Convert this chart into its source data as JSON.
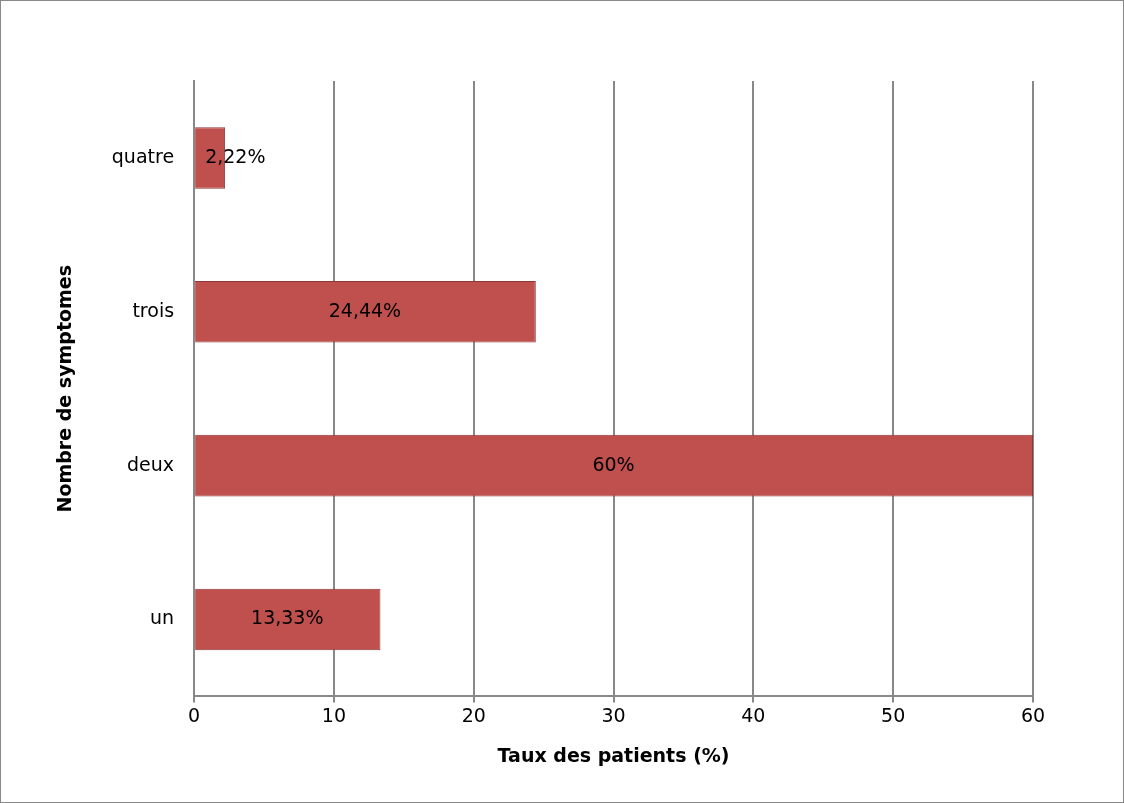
{
  "chart_data": {
    "type": "bar",
    "orientation": "horizontal",
    "xlabel": "Taux des patients (%)",
    "ylabel": "Nombre de symptomes",
    "categories": [
      "quatre",
      "trois",
      "deux",
      "un"
    ],
    "values": [
      2.22,
      24.44,
      60,
      13.33
    ],
    "value_labels": [
      "2,22%",
      "24,44%",
      "60%",
      "13,33%"
    ],
    "color": "#c0504d",
    "xlim": [
      0,
      60
    ],
    "xticks": [
      0,
      10,
      20,
      30,
      40,
      50,
      60
    ],
    "grid": "x",
    "legend": false
  }
}
